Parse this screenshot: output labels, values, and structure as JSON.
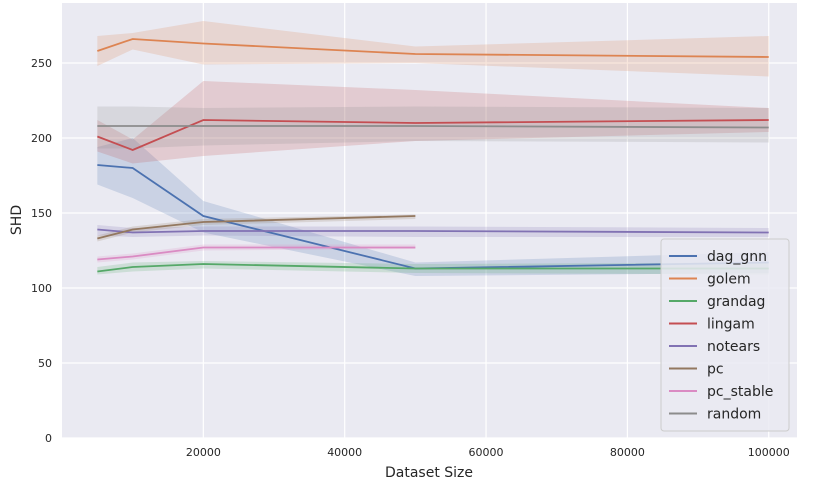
{
  "chart_data": {
    "type": "line",
    "xlabel": "Dataset Size",
    "ylabel": "SHD",
    "xlim": [
      0,
      104000
    ],
    "ylim": [
      0,
      290
    ],
    "x_ticks": [
      20000,
      40000,
      60000,
      80000,
      100000
    ],
    "x_tick_labels": [
      "20000",
      "40000",
      "60000",
      "80000",
      "100000"
    ],
    "y_ticks": [
      0,
      50,
      100,
      150,
      200,
      250
    ],
    "y_tick_labels": [
      "0",
      "50",
      "100",
      "150",
      "200",
      "250"
    ],
    "grid": true,
    "legend_position": "lower-right",
    "background_color": "#eaeaf2",
    "series": [
      {
        "name": "dag_gnn",
        "color": "#4c72b0",
        "x": [
          5000,
          10000,
          20000,
          50000,
          100000
        ],
        "y": [
          182,
          180,
          148,
          113,
          117
        ],
        "lower": [
          169,
          160,
          137,
          108,
          110
        ],
        "upper": [
          194,
          200,
          158,
          117,
          124
        ]
      },
      {
        "name": "golem",
        "color": "#dd8452",
        "x": [
          5000,
          10000,
          20000,
          50000,
          100000
        ],
        "y": [
          258,
          266,
          263,
          256,
          254
        ],
        "lower": [
          248,
          259,
          249,
          250,
          241
        ],
        "upper": [
          268,
          270,
          278,
          261,
          268
        ]
      },
      {
        "name": "grandag",
        "color": "#55a868",
        "x": [
          5000,
          10000,
          20000,
          50000,
          100000
        ],
        "y": [
          111,
          114,
          116,
          113,
          113
        ],
        "lower": [
          109,
          111,
          113,
          110,
          109
        ],
        "upper": [
          114,
          117,
          118,
          116,
          117
        ]
      },
      {
        "name": "lingam",
        "color": "#c44e52",
        "x": [
          5000,
          10000,
          20000,
          50000,
          100000
        ],
        "y": [
          201,
          192,
          212,
          210,
          212
        ],
        "lower": [
          191,
          183,
          188,
          198,
          204
        ],
        "upper": [
          212,
          199,
          238,
          232,
          220
        ]
      },
      {
        "name": "notears",
        "color": "#8172b3",
        "x": [
          5000,
          10000,
          20000,
          50000,
          100000
        ],
        "y": [
          139,
          137,
          138,
          138,
          137
        ],
        "lower": [
          135,
          134,
          135,
          134,
          134
        ],
        "upper": [
          142,
          140,
          141,
          141,
          140
        ]
      },
      {
        "name": "pc",
        "color": "#937860",
        "x": [
          5000,
          10000,
          20000,
          50000
        ],
        "y": [
          133,
          139,
          144,
          148
        ],
        "lower": [
          131,
          137,
          142,
          146
        ],
        "upper": [
          135,
          141,
          146,
          149
        ]
      },
      {
        "name": "pc_stable",
        "color": "#da8bc3",
        "x": [
          5000,
          10000,
          20000,
          50000
        ],
        "y": [
          119,
          121,
          127,
          127
        ],
        "lower": [
          117,
          119,
          125,
          126
        ],
        "upper": [
          121,
          123,
          129,
          129
        ]
      },
      {
        "name": "random",
        "color": "#8c8c8c",
        "x": [
          5000,
          10000,
          20000,
          50000,
          100000
        ],
        "y": [
          208,
          208,
          208,
          208,
          207
        ],
        "lower": [
          193,
          193,
          195,
          198,
          197
        ],
        "upper": [
          221,
          221,
          220,
          221,
          220
        ]
      }
    ]
  }
}
